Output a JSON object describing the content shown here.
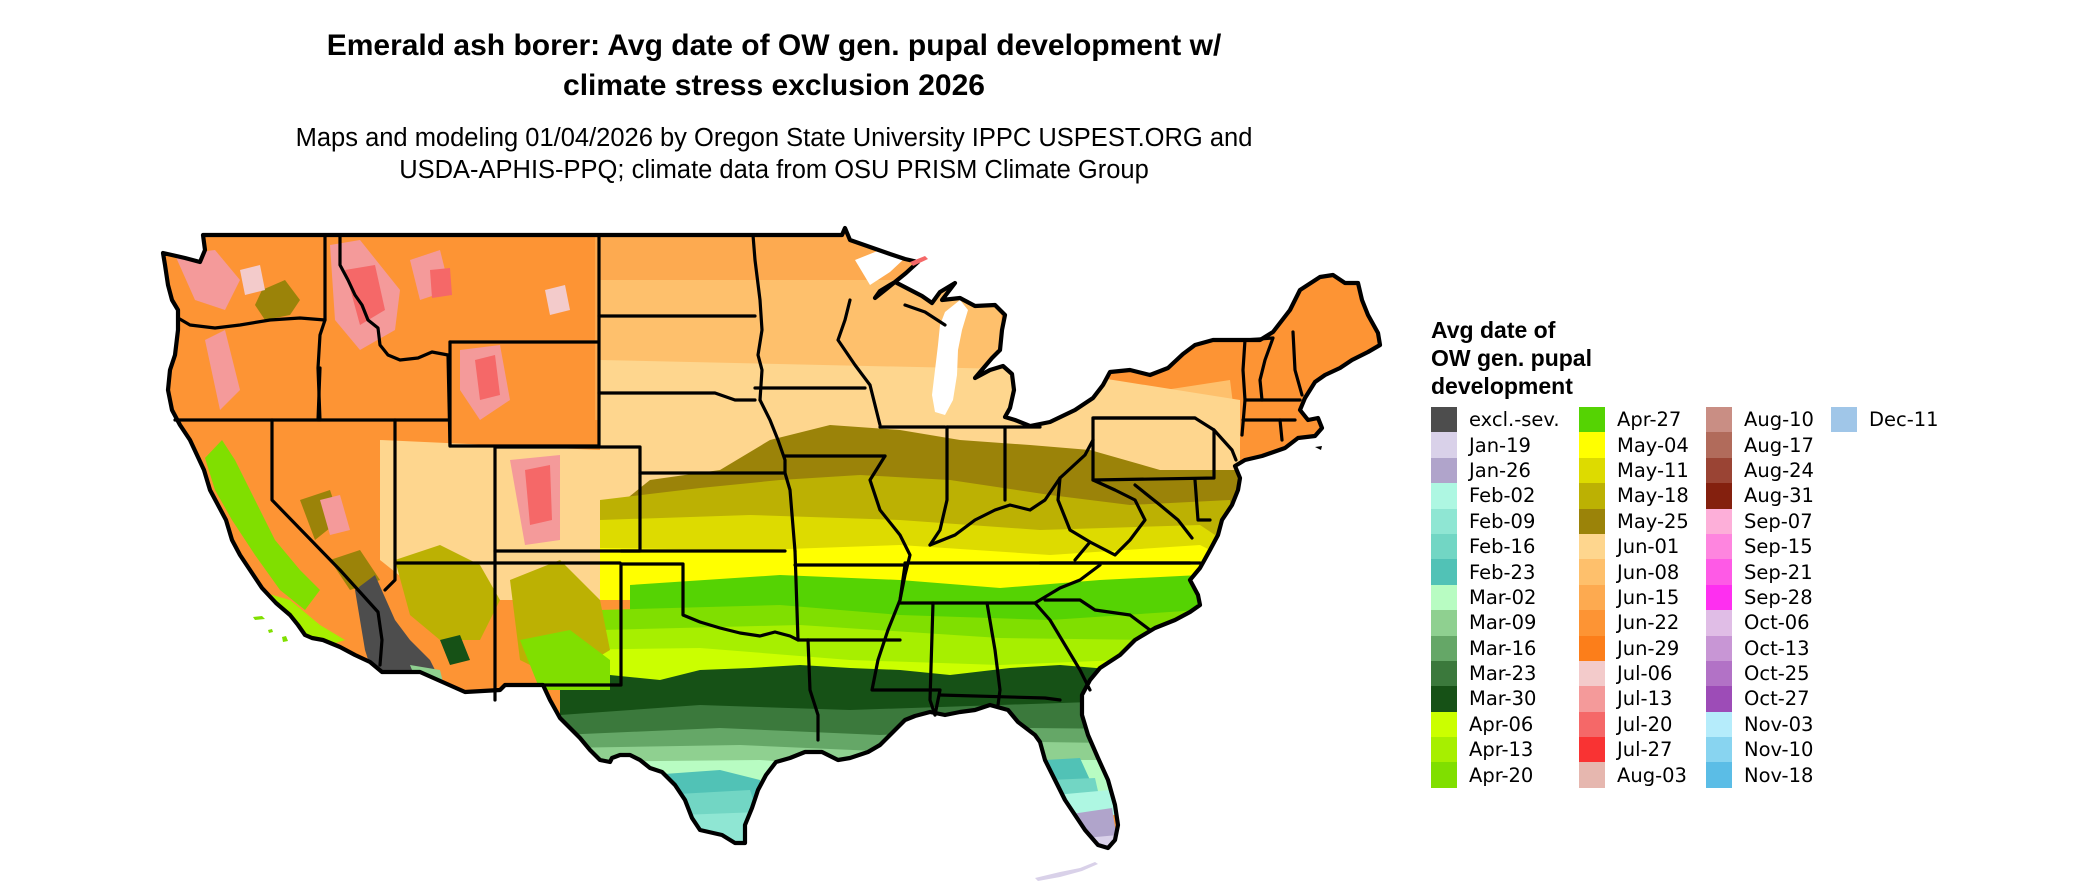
{
  "header": {
    "title_line1": "Emerald ash borer: Avg date of OW gen. pupal development w/",
    "title_line2": "climate stress exclusion 2026",
    "subtitle_line1": "Maps and modeling 01/04/2026 by Oregon State University IPPC USPEST.ORG and",
    "subtitle_line2": "USDA-APHIS-PPQ; climate data from OSU PRISM Climate Group"
  },
  "legend": {
    "title_line1": "Avg date of",
    "title_line2": "OW gen. pupal",
    "title_line3": "development",
    "columns": [
      [
        {
          "label": "excl.-sev.",
          "color": "#4d4d4d"
        },
        {
          "label": "Jan-19",
          "color": "#d9d1e9"
        },
        {
          "label": "Jan-26",
          "color": "#b0a4cb"
        },
        {
          "label": "Feb-02",
          "color": "#aef7e2"
        },
        {
          "label": "Feb-09",
          "color": "#8fe6d3"
        },
        {
          "label": "Feb-16",
          "color": "#72d6c4"
        },
        {
          "label": "Feb-23",
          "color": "#51c2b6"
        },
        {
          "label": "Mar-02",
          "color": "#b8fcc2"
        },
        {
          "label": "Mar-09",
          "color": "#8fd090"
        },
        {
          "label": "Mar-16",
          "color": "#65a767"
        },
        {
          "label": "Mar-23",
          "color": "#3b793c"
        },
        {
          "label": "Mar-30",
          "color": "#165116"
        },
        {
          "label": "Apr-06",
          "color": "#cbff00"
        },
        {
          "label": "Apr-13",
          "color": "#a7ef00"
        },
        {
          "label": "Apr-20",
          "color": "#80df00"
        }
      ],
      [
        {
          "label": "Apr-27",
          "color": "#55d303"
        },
        {
          "label": "May-04",
          "color": "#ffff00"
        },
        {
          "label": "May-11",
          "color": "#dddb00"
        },
        {
          "label": "May-18",
          "color": "#bcb103"
        },
        {
          "label": "May-25",
          "color": "#9b8309"
        },
        {
          "label": "Jun-01",
          "color": "#fed68e"
        },
        {
          "label": "Jun-08",
          "color": "#fec06c"
        },
        {
          "label": "Jun-15",
          "color": "#fdaa50"
        },
        {
          "label": "Jun-22",
          "color": "#fd9434"
        },
        {
          "label": "Jun-29",
          "color": "#fc7e1a"
        },
        {
          "label": "Jul-06",
          "color": "#f3cbcb"
        },
        {
          "label": "Jul-13",
          "color": "#f49a9a"
        },
        {
          "label": "Jul-20",
          "color": "#f56868"
        },
        {
          "label": "Jul-27",
          "color": "#f93333"
        },
        {
          "label": "Aug-03",
          "color": "#e6b7af"
        }
      ],
      [
        {
          "label": "Aug-10",
          "color": "#c98e84"
        },
        {
          "label": "Aug-17",
          "color": "#b16b5b"
        },
        {
          "label": "Aug-24",
          "color": "#9a4434"
        },
        {
          "label": "Aug-31",
          "color": "#84200e"
        },
        {
          "label": "Sep-07",
          "color": "#fdafd9"
        },
        {
          "label": "Sep-15",
          "color": "#fe85df"
        },
        {
          "label": "Sep-21",
          "color": "#fe5ae6"
        },
        {
          "label": "Sep-28",
          "color": "#fe2ff0"
        },
        {
          "label": "Oct-06",
          "color": "#e0bde6"
        },
        {
          "label": "Oct-13",
          "color": "#c896d5"
        },
        {
          "label": "Oct-25",
          "color": "#b272c6"
        },
        {
          "label": "Oct-27",
          "color": "#9d4cb7"
        },
        {
          "label": "Nov-03",
          "color": "#b5ecfb"
        },
        {
          "label": "Nov-10",
          "color": "#88d4f0"
        },
        {
          "label": "Nov-18",
          "color": "#5bbde6"
        }
      ],
      [
        {
          "label": "Dec-11",
          "color": "#a0c6e8"
        }
      ]
    ]
  },
  "map": {
    "excluded_color": "#4d4d4d",
    "border_color": "#000000"
  }
}
